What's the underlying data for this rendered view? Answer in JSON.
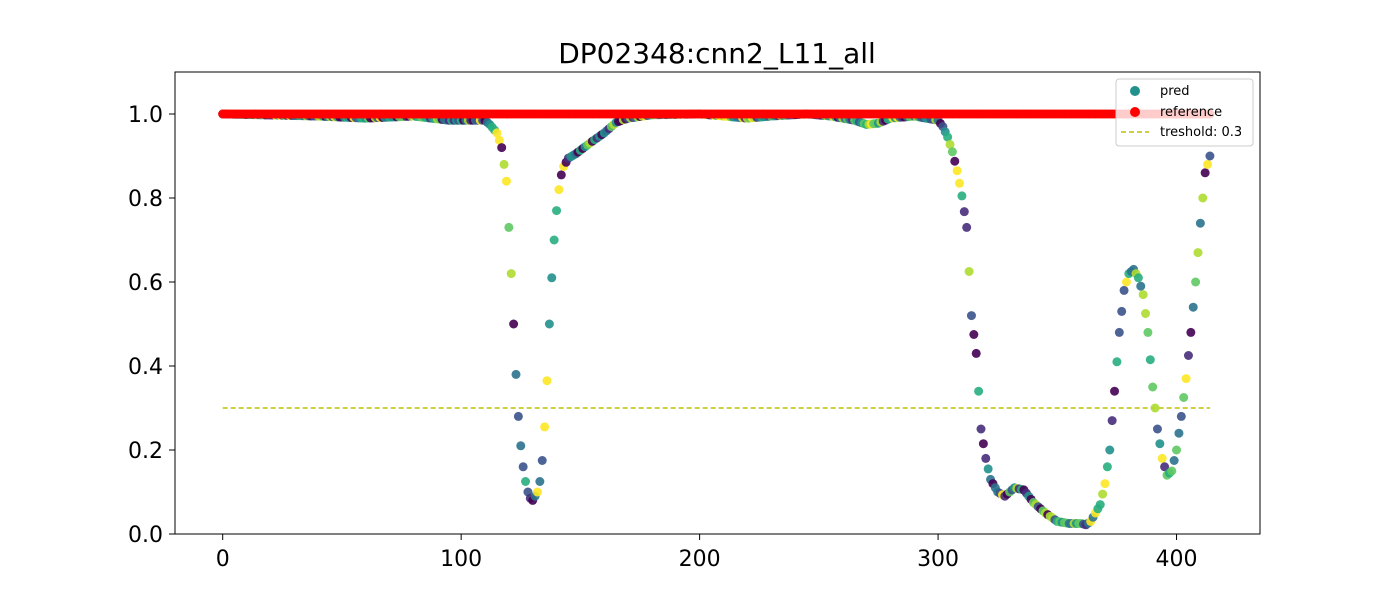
{
  "chart_data": {
    "type": "scatter",
    "title": "DP02348:cnn2_L11_all",
    "xlabel": "",
    "ylabel": "",
    "xlim": [
      -20,
      435
    ],
    "ylim": [
      0.0,
      1.1
    ],
    "x_ticks": [
      0,
      100,
      200,
      300,
      400
    ],
    "y_ticks": [
      0.0,
      0.2,
      0.4,
      0.6,
      0.8,
      1.0
    ],
    "x_tick_labels": [
      "0",
      "100",
      "200",
      "300",
      "400"
    ],
    "y_tick_labels": [
      "0.0",
      "0.2",
      "0.4",
      "0.6",
      "0.8",
      "1.0"
    ],
    "grid": false,
    "legend_position": "top-right",
    "colormap": "viridis",
    "x_range": [
      0,
      414
    ],
    "pred_curve_x": [
      0,
      40,
      60,
      80,
      95,
      110,
      112,
      115,
      117,
      119,
      121,
      122,
      123,
      124,
      125,
      126,
      127,
      128,
      129,
      130,
      131,
      132,
      133,
      134,
      135,
      136,
      137,
      138,
      139,
      140,
      141,
      142,
      143,
      144,
      145,
      148,
      155,
      160,
      165,
      170,
      180,
      200,
      210,
      220,
      230,
      245,
      255,
      265,
      270,
      275,
      280,
      290,
      300,
      302,
      304,
      306,
      308,
      310,
      312,
      314,
      316,
      318,
      320,
      322,
      325,
      328,
      332,
      336,
      340,
      345,
      350,
      355,
      360,
      362,
      364,
      366,
      368,
      370,
      372,
      374,
      376,
      378,
      380,
      382,
      384,
      386,
      388,
      390,
      392,
      394,
      396,
      398,
      400,
      402,
      404,
      406,
      408,
      410,
      412,
      414
    ],
    "pred_curve_y": [
      1.0,
      0.995,
      0.99,
      0.995,
      0.985,
      0.985,
      0.975,
      0.955,
      0.92,
      0.84,
      0.62,
      0.5,
      0.38,
      0.28,
      0.21,
      0.16,
      0.125,
      0.1,
      0.085,
      0.08,
      0.09,
      0.1,
      0.125,
      0.175,
      0.255,
      0.365,
      0.5,
      0.61,
      0.7,
      0.77,
      0.82,
      0.855,
      0.875,
      0.885,
      0.895,
      0.905,
      0.935,
      0.955,
      0.98,
      0.99,
      0.998,
      1.0,
      0.995,
      0.99,
      0.995,
      1.0,
      0.995,
      0.985,
      0.975,
      0.978,
      0.99,
      0.995,
      0.985,
      0.97,
      0.945,
      0.91,
      0.865,
      0.805,
      0.73,
      0.52,
      0.43,
      0.25,
      0.18,
      0.13,
      0.1,
      0.09,
      0.11,
      0.105,
      0.075,
      0.05,
      0.03,
      0.025,
      0.025,
      0.022,
      0.03,
      0.05,
      0.07,
      0.12,
      0.2,
      0.34,
      0.48,
      0.58,
      0.62,
      0.63,
      0.61,
      0.57,
      0.48,
      0.35,
      0.25,
      0.18,
      0.14,
      0.15,
      0.2,
      0.28,
      0.37,
      0.48,
      0.6,
      0.74,
      0.86,
      0.9
    ]
  },
  "legend": {
    "pred_label": "pred",
    "reference_label": "reference",
    "threshold_label": "treshold: 0.3"
  },
  "threshold": 0.3,
  "reference_value": 1.0,
  "colors": {
    "reference": "#ff0000",
    "threshold": "#bfbf00",
    "legend_pred": "#21918c"
  }
}
